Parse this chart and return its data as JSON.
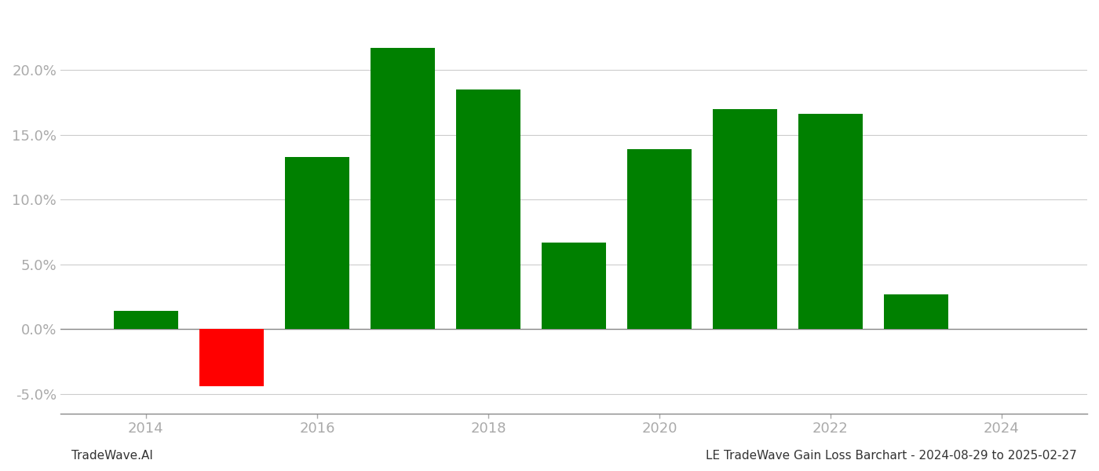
{
  "years": [
    2014,
    2015,
    2016,
    2017,
    2018,
    2019,
    2020,
    2021,
    2022,
    2023
  ],
  "values": [
    0.014,
    -0.044,
    0.133,
    0.217,
    0.185,
    0.067,
    0.139,
    0.17,
    0.166,
    0.027
  ],
  "colors": [
    "#008000",
    "#ff0000",
    "#008000",
    "#008000",
    "#008000",
    "#008000",
    "#008000",
    "#008000",
    "#008000",
    "#008000"
  ],
  "footer_left": "TradeWave.AI",
  "footer_right": "LE TradeWave Gain Loss Barchart - 2024-08-29 to 2025-02-27",
  "ylim": [
    -0.065,
    0.245
  ],
  "yticks": [
    -0.05,
    0.0,
    0.05,
    0.1,
    0.15,
    0.2
  ],
  "xlim": [
    2013.0,
    2025.0
  ],
  "xticks": [
    2014,
    2016,
    2018,
    2020,
    2022,
    2024
  ],
  "bar_width": 0.75,
  "background_color": "#ffffff",
  "grid_color": "#cccccc",
  "tick_color": "#aaaaaa",
  "spine_color": "#888888",
  "label_fontsize": 13,
  "footer_fontsize": 11
}
